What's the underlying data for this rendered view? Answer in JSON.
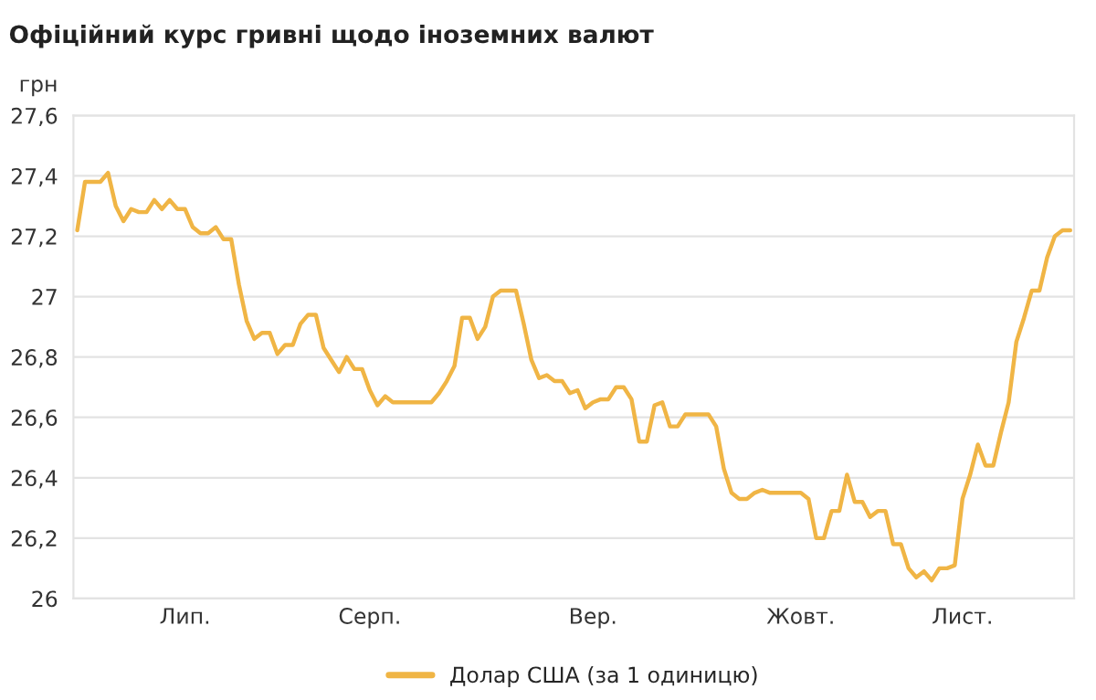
{
  "chart_data": {
    "type": "line",
    "title": "Офіційний курс гривні щодо іноземних валют",
    "ylabel": "грн",
    "categories": [
      null,
      null,
      null,
      null,
      null,
      null,
      null,
      null,
      null,
      null,
      null,
      null,
      null,
      null,
      "Лип.",
      null,
      null,
      null,
      null,
      null,
      null,
      null,
      null,
      null,
      null,
      null,
      null,
      null,
      null,
      null,
      null,
      null,
      null,
      null,
      null,
      null,
      null,
      null,
      "Серп.",
      null,
      null,
      null,
      null,
      null,
      null,
      null,
      null,
      null,
      null,
      null,
      null,
      null,
      null,
      null,
      null,
      null,
      null,
      null,
      null,
      null,
      null,
      null,
      null,
      null,
      null,
      null,
      null,
      "Вер.",
      null,
      null,
      null,
      null,
      null,
      null,
      null,
      null,
      null,
      null,
      null,
      null,
      null,
      null,
      null,
      null,
      null,
      null,
      null,
      null,
      null,
      null,
      null,
      null,
      null,
      null,
      "Жовт.",
      null,
      null,
      null,
      null,
      null,
      null,
      null,
      null,
      null,
      null,
      null,
      null,
      null,
      null,
      null,
      null,
      null,
      null,
      null,
      null,
      "Лист.",
      null,
      null,
      null,
      null,
      null,
      null,
      null,
      null,
      null,
      null,
      null,
      null,
      null,
      null
    ],
    "series": [
      {
        "name": "Долар США (за 1 одиницю)",
        "color": "#f0b545",
        "values": [
          27.22,
          27.38,
          27.38,
          27.38,
          27.41,
          27.3,
          27.25,
          27.29,
          27.28,
          27.28,
          27.32,
          27.29,
          27.32,
          27.29,
          27.29,
          27.23,
          27.21,
          27.21,
          27.23,
          27.19,
          27.19,
          27.04,
          26.92,
          26.86,
          26.88,
          26.88,
          26.81,
          26.84,
          26.84,
          26.91,
          26.94,
          26.94,
          26.83,
          26.79,
          26.75,
          26.8,
          26.76,
          26.76,
          26.69,
          26.64,
          26.67,
          26.65,
          26.65,
          26.65,
          26.65,
          26.65,
          26.65,
          26.68,
          26.72,
          26.77,
          26.93,
          26.93,
          26.86,
          26.9,
          27.0,
          27.02,
          27.02,
          27.02,
          26.91,
          26.79,
          26.73,
          26.74,
          26.72,
          26.72,
          26.68,
          26.69,
          26.63,
          26.65,
          26.66,
          26.66,
          26.7,
          26.7,
          26.66,
          26.52,
          26.52,
          26.64,
          26.65,
          26.57,
          26.57,
          26.61,
          26.61,
          26.61,
          26.61,
          26.57,
          26.43,
          26.35,
          26.33,
          26.33,
          26.35,
          26.36,
          26.35,
          26.35,
          26.35,
          26.35,
          26.35,
          26.33,
          26.2,
          26.2,
          26.29,
          26.29,
          26.41,
          26.32,
          26.32,
          26.27,
          26.29,
          26.29,
          26.18,
          26.18,
          26.1,
          26.07,
          26.09,
          26.06,
          26.1,
          26.1,
          26.11,
          26.33,
          26.41,
          26.51,
          26.44,
          26.44,
          26.55,
          26.65,
          26.85,
          26.93,
          27.02,
          27.02,
          27.13,
          27.2,
          27.22,
          27.22
        ]
      }
    ],
    "ylim": [
      26,
      27.6
    ],
    "yticks": [
      26,
      {
        "value": 26.2,
        "label": "26,2"
      },
      {
        "value": 26.4,
        "label": "26,4"
      },
      {
        "value": 26.6,
        "label": "26,6"
      },
      {
        "value": 26.8,
        "label": "26,8"
      },
      27,
      {
        "value": 27.2,
        "label": "27,2"
      },
      {
        "value": 27.4,
        "label": "27,4"
      },
      {
        "value": 27.6,
        "label": "27,6"
      }
    ],
    "grid": "y",
    "legend": "bottom",
    "line_style": "solid"
  }
}
